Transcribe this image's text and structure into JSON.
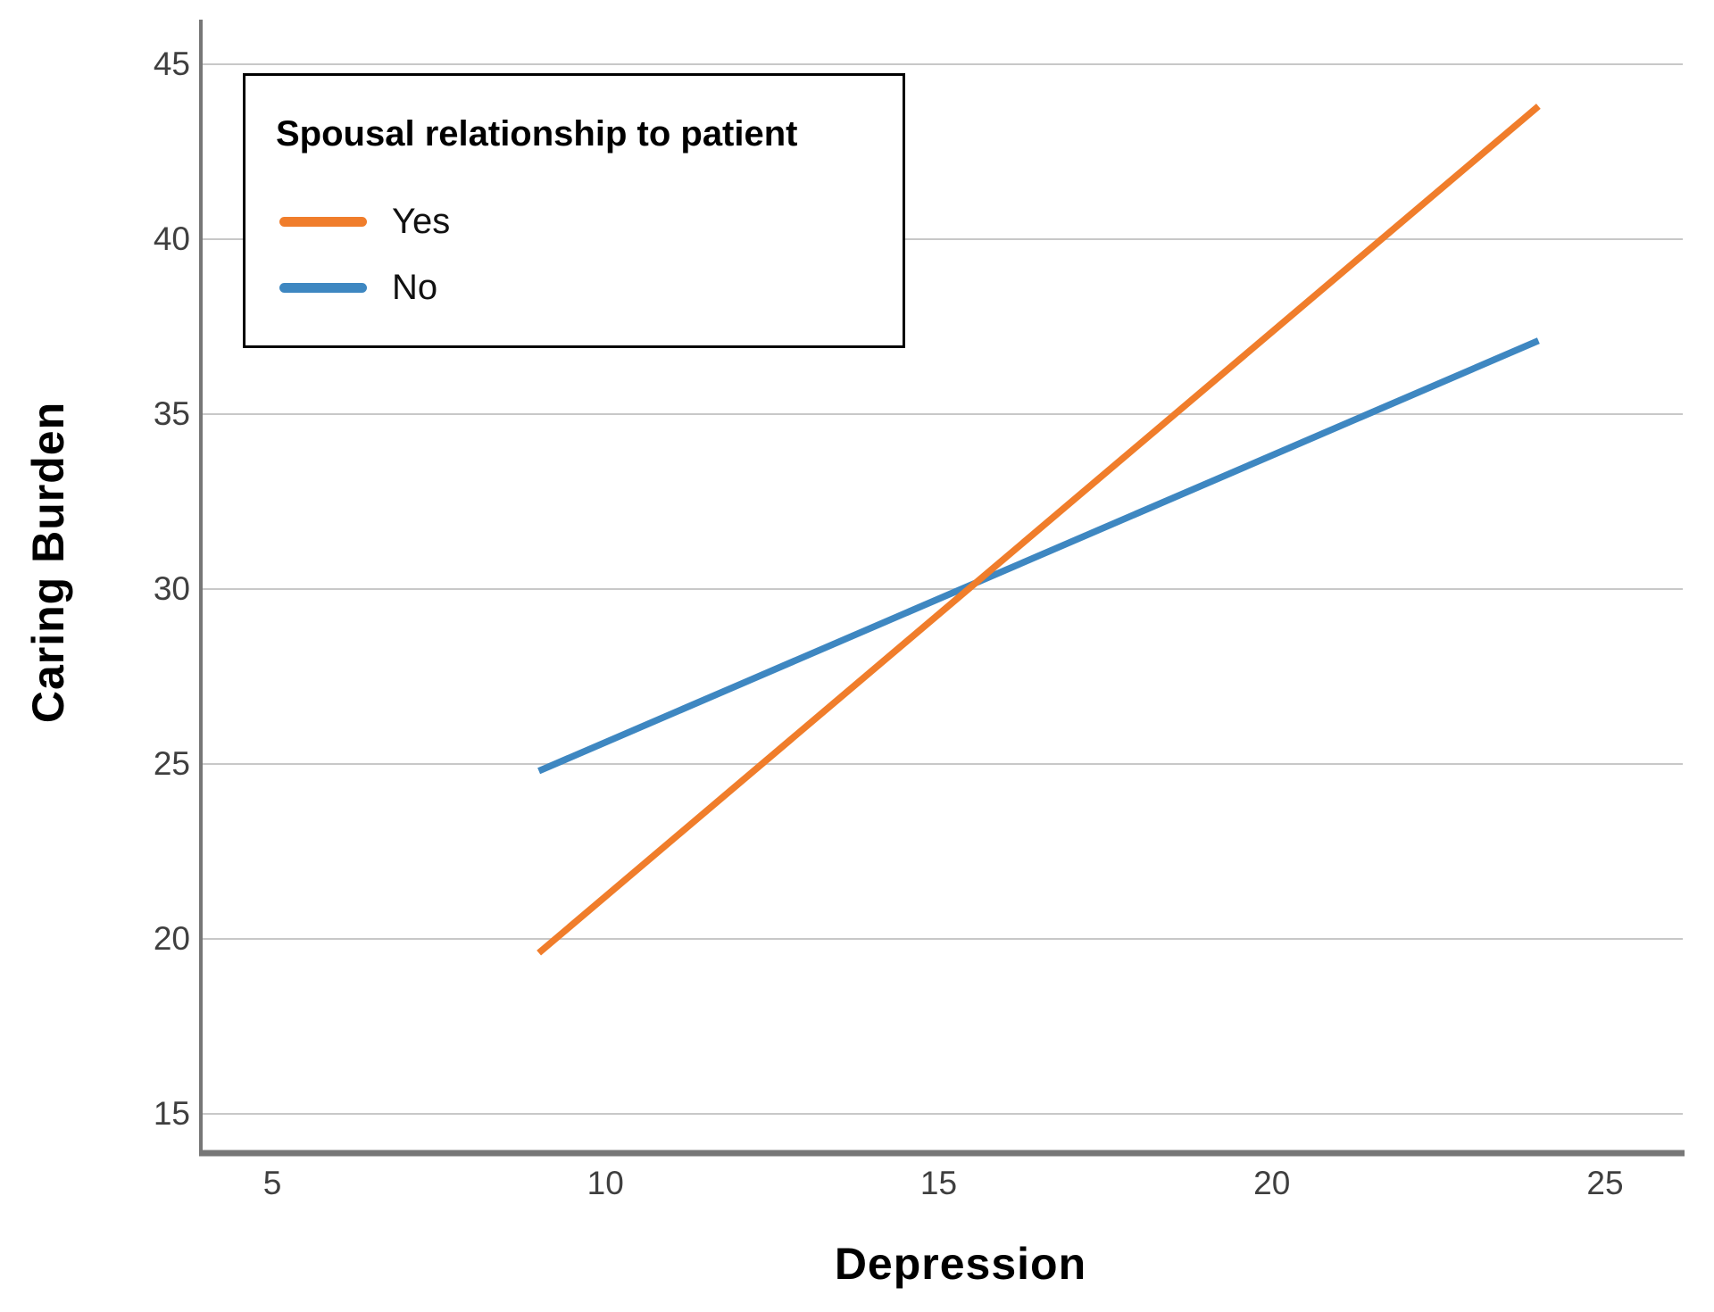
{
  "chart_data": {
    "type": "line",
    "title": "",
    "xlabel": "Depression",
    "ylabel": "Caring Burden",
    "x_ticks": [
      5,
      10,
      15,
      20,
      25
    ],
    "y_ticks": [
      15,
      20,
      25,
      30,
      35,
      40,
      45
    ],
    "xlim": [
      3.9,
      26.2
    ],
    "ylim": [
      13.9,
      46.3
    ],
    "grid": "horizontal-gridlines-only",
    "legend": {
      "title": "Spousal relationship to patient",
      "position": "top-left",
      "entries": [
        "Yes",
        "No"
      ]
    },
    "series": [
      {
        "name": "Yes",
        "color": "#F07D2B",
        "x": [
          9,
          24
        ],
        "y": [
          19.6,
          43.8
        ]
      },
      {
        "name": "No",
        "color": "#3E87C1",
        "x": [
          9,
          24
        ],
        "y": [
          24.8,
          37.1
        ]
      }
    ],
    "colors": {
      "gridline": "#C8C8C8",
      "axis": "#777777",
      "tick_label": "#3F3F3F",
      "text": "#000000",
      "background": "#FFFFFF"
    }
  }
}
